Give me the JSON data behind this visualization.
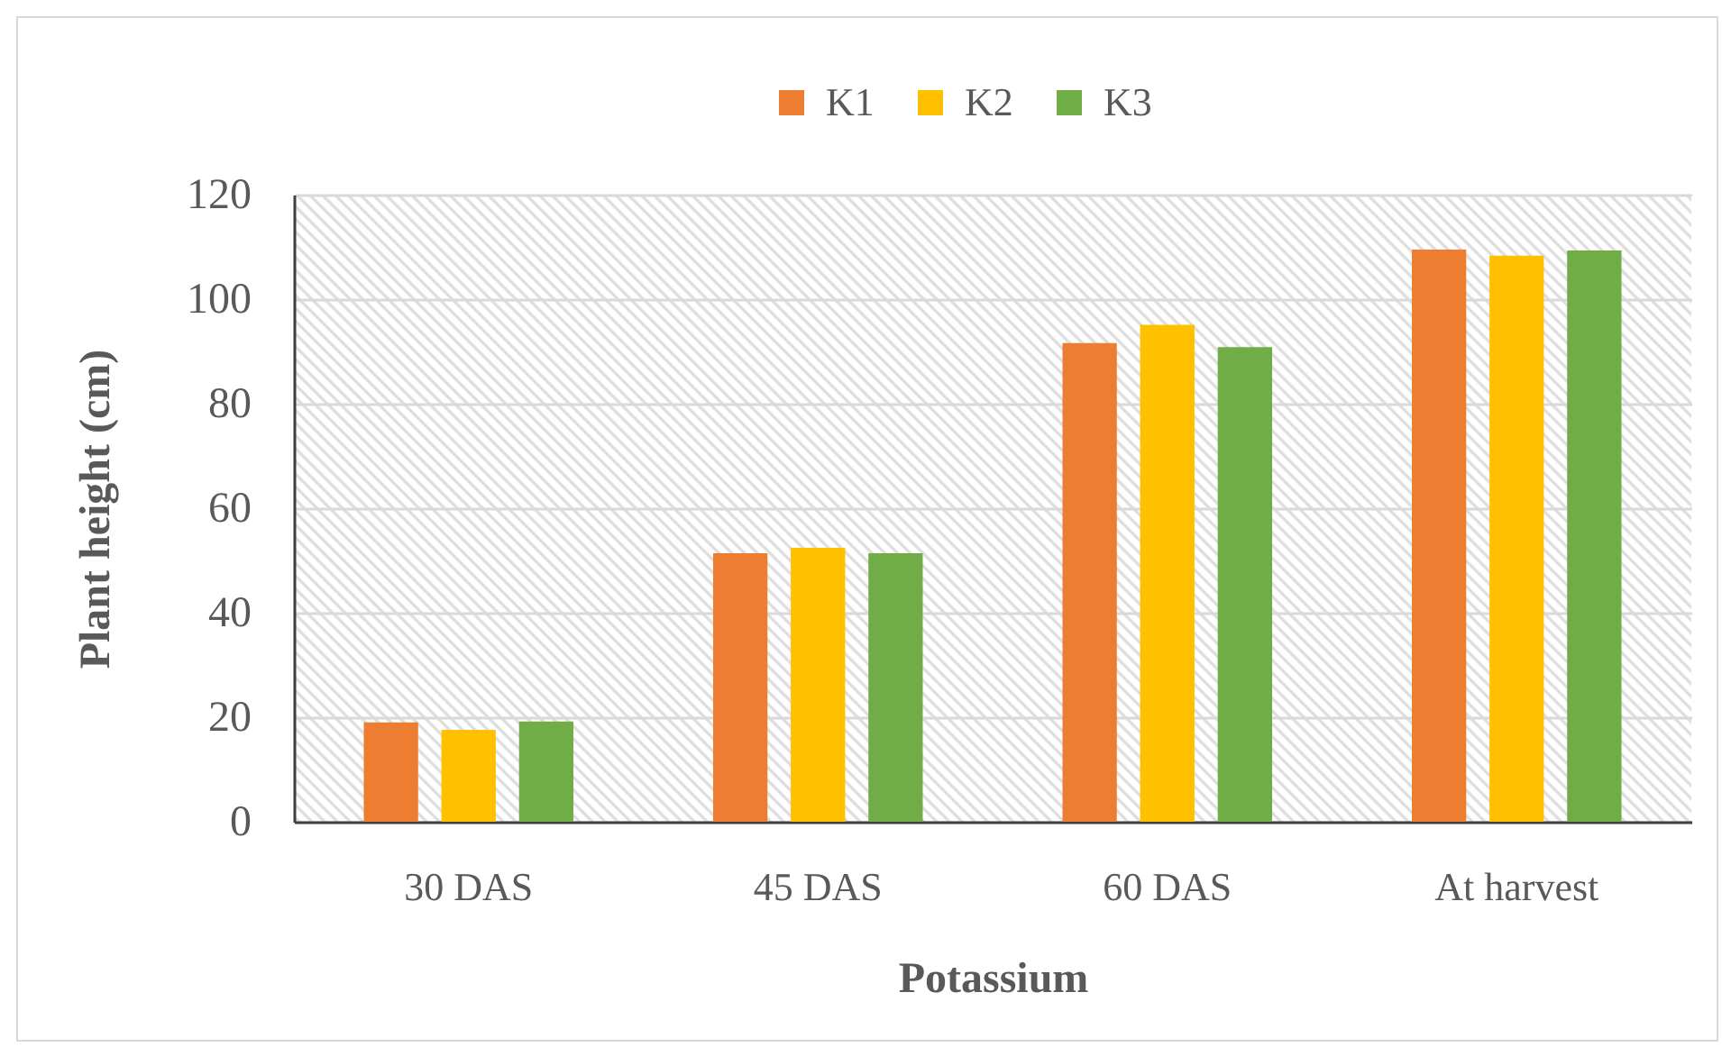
{
  "chart_data": {
    "type": "bar",
    "xlabel": "Potassium",
    "ylabel": "Plant height (cm)",
    "categories": [
      "30 DAS",
      "45 DAS",
      "60 DAS",
      "At harvest"
    ],
    "series": [
      {
        "name": "K1",
        "color": "#ed7d31",
        "values": [
          19,
          51.4,
          91.6,
          109.5
        ]
      },
      {
        "name": "K2",
        "color": "#ffc000",
        "values": [
          17.6,
          52.4,
          95.1,
          108.3
        ]
      },
      {
        "name": "K3",
        "color": "#70ad47",
        "values": [
          19.2,
          51.4,
          90.8,
          109.3
        ]
      }
    ],
    "ylim": [
      0,
      120
    ],
    "yticks": [
      0,
      20,
      40,
      60,
      80,
      100,
      120
    ],
    "grid": "y",
    "legend": "top"
  }
}
